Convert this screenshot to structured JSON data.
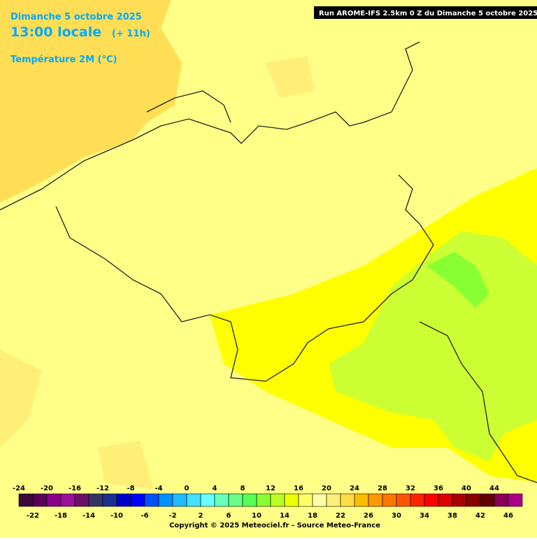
{
  "header": {
    "date": "Dimanche 5 octobre 2025",
    "time": "13:00 locale",
    "offset": "(+ 11h)",
    "parameter": "Température 2M (°C)",
    "run": "Run AROME-IFS 2.5km 0 Z du Dimanche 5 octobre 2025"
  },
  "legend": {
    "labels_top": [
      -24,
      -20,
      -16,
      -12,
      -8,
      -4,
      0,
      4,
      8,
      12,
      16,
      20,
      24,
      28,
      32,
      36,
      40,
      44
    ],
    "labels_bottom": [
      -22,
      -18,
      -14,
      -10,
      -6,
      -2,
      2,
      6,
      10,
      14,
      18,
      22,
      26,
      30,
      34,
      38,
      42,
      46
    ],
    "colors": [
      "#3a0a3a",
      "#5a005a",
      "#8a008a",
      "#9a109a",
      "#6a106a",
      "#333366",
      "#1a2f8f",
      "#0000cc",
      "#0000ff",
      "#0050ff",
      "#0090ff",
      "#22bbff",
      "#44e0ff",
      "#66ffff",
      "#66ffbb",
      "#66ff88",
      "#55ff55",
      "#88ff33",
      "#bbff22",
      "#eeff00",
      "#ffff66",
      "#ffffaa",
      "#ffee77",
      "#ffdd44",
      "#ffbb00",
      "#ff9900",
      "#ff7700",
      "#ff5500",
      "#ff2200",
      "#ff0000",
      "#dd0000",
      "#aa0000",
      "#880000",
      "#660000",
      "#880055",
      "#aa0088"
    ]
  },
  "footer": {
    "copyright": "Copyright © 2025 Meteociel.fr - Source Meteo-France"
  }
}
